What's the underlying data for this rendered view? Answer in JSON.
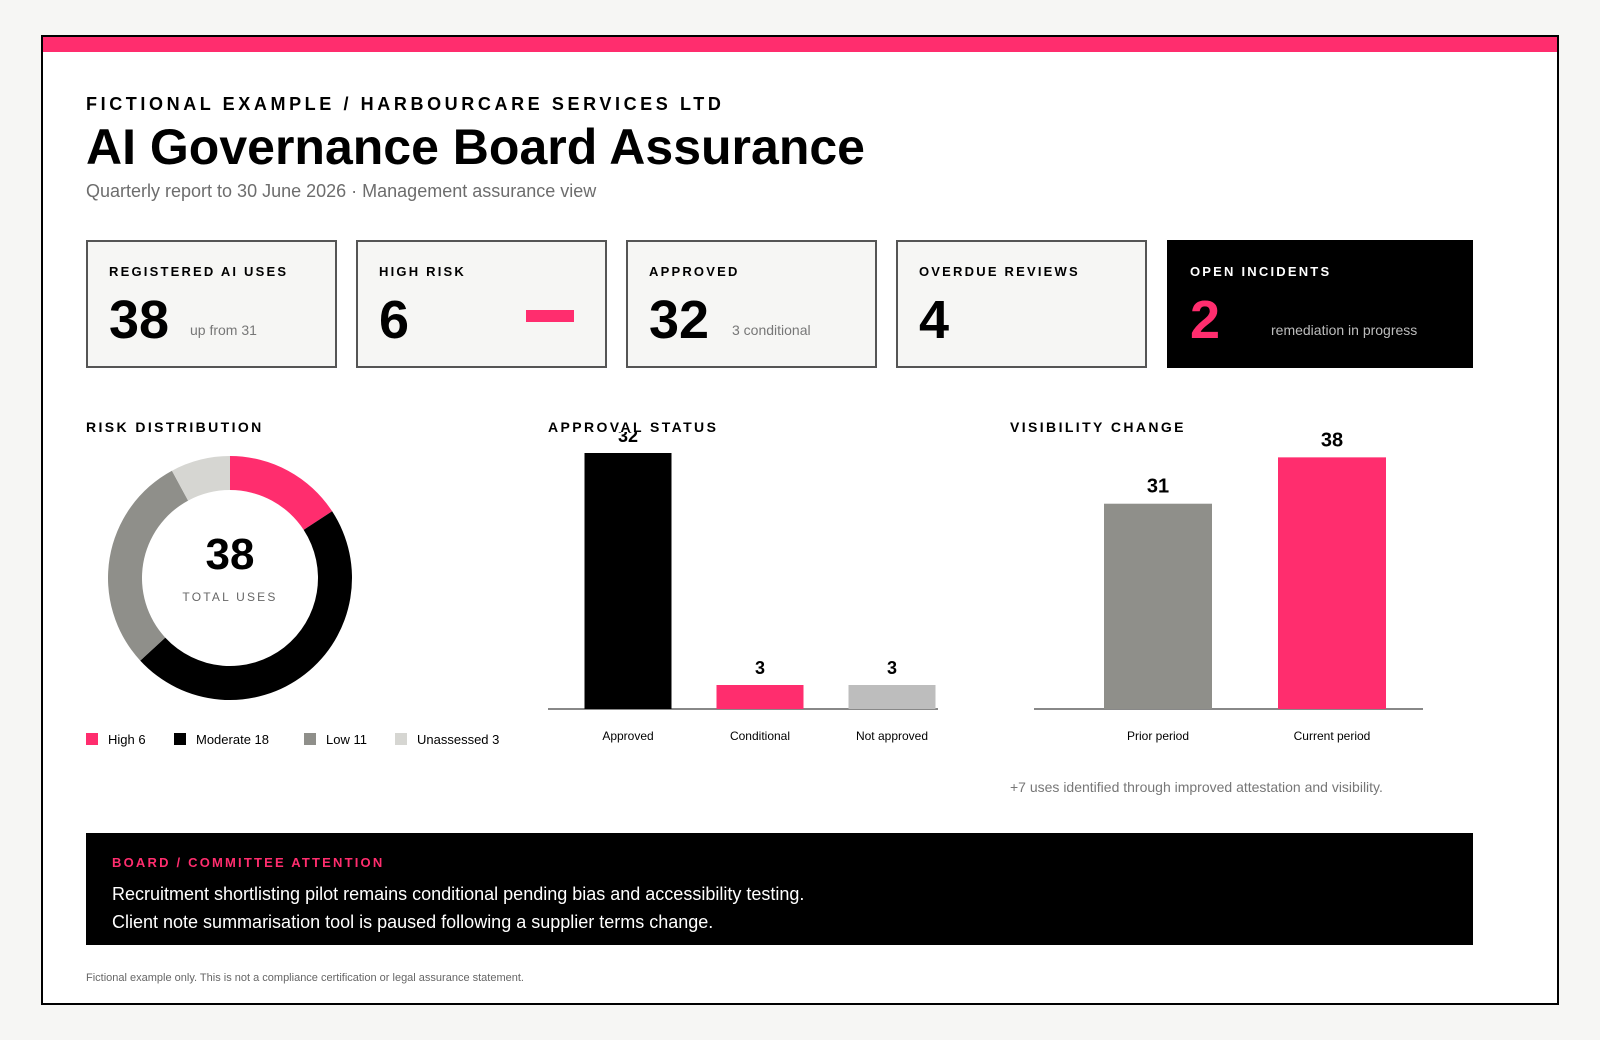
{
  "header": {
    "eyebrow": "FICTIONAL EXAMPLE / HARBOURCARE SERVICES LTD",
    "title": "AI Governance Board Assurance",
    "subtitle": "Quarterly report to 30 June 2026 · Management assurance view"
  },
  "kpis": [
    {
      "label": "REGISTERED AI USES",
      "value": "38",
      "note": "up from 31"
    },
    {
      "label": "HIGH RISK",
      "value": "6",
      "note": ""
    },
    {
      "label": "APPROVED",
      "value": "32",
      "note": "3 conditional"
    },
    {
      "label": "OVERDUE REVIEWS",
      "value": "4",
      "note": ""
    },
    {
      "label": "OPEN INCIDENTS",
      "value": "2",
      "note": "remediation in progress"
    }
  ],
  "sections": {
    "risk": "RISK DISTRIBUTION",
    "approval": "APPROVAL STATUS",
    "visibility": "VISIBILITY CHANGE"
  },
  "colors": {
    "accent": "#ff2d6e",
    "black": "#000000",
    "grey": "#8f8f8a",
    "light_grey": "#d6d6d2",
    "bar_grey": "#bdbdbd"
  },
  "chart_data": [
    {
      "type": "pie",
      "center_value": "38",
      "center_label": "TOTAL USES",
      "categories": [
        "High",
        "Moderate",
        "Low",
        "Unassessed"
      ],
      "values": [
        6,
        18,
        11,
        3
      ],
      "legend": [
        "High 6",
        "Moderate 18",
        "Low 11",
        "Unassessed 3"
      ],
      "colors": [
        "#ff2d6e",
        "#000000",
        "#8f8f8a",
        "#d6d6d2"
      ]
    },
    {
      "type": "bar",
      "categories": [
        "Approved",
        "Conditional",
        "Not approved"
      ],
      "values": [
        32,
        3,
        3
      ],
      "colors": [
        "#000000",
        "#ff2d6e",
        "#bdbdbd"
      ],
      "ylim": [
        0,
        32
      ]
    },
    {
      "type": "bar",
      "categories": [
        "Prior period",
        "Current period"
      ],
      "values": [
        31,
        38
      ],
      "colors": [
        "#8f8f8a",
        "#ff2d6e"
      ],
      "ylim": [
        0,
        45
      ],
      "note": "+7 uses identified through improved attestation and visibility."
    }
  ],
  "attention": {
    "label": "BOARD / COMMITTEE ATTENTION",
    "lines": [
      "Recruitment shortlisting pilot remains conditional pending bias and accessibility testing.",
      "Client note summarisation tool is paused following a supplier terms change."
    ]
  },
  "footnote": "Fictional example only. This is not a compliance certification or legal assurance statement."
}
